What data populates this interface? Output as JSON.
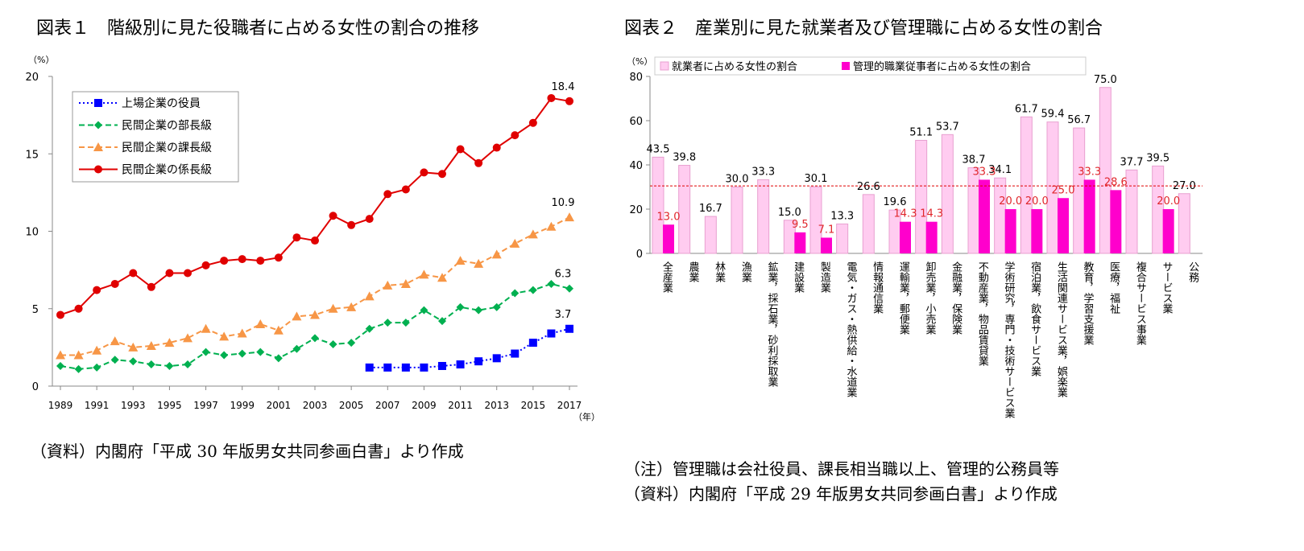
{
  "chart_data": [
    {
      "type": "line",
      "title": "図表１　階級別に見た役職者に占める女性の割合の推移",
      "y_unit": "（%）",
      "x_unit": "（年）",
      "notes": [
        "（資料）内閣府「平成 30 年版男女共同参画白書」より作成"
      ],
      "x": [
        1989,
        1990,
        1991,
        1992,
        1993,
        1994,
        1995,
        1996,
        1997,
        1998,
        1999,
        2000,
        2001,
        2002,
        2003,
        2004,
        2005,
        2006,
        2007,
        2008,
        2009,
        2010,
        2011,
        2012,
        2013,
        2014,
        2015,
        2016,
        2017
      ],
      "xlim": [
        1989,
        2017
      ],
      "xticks": [
        1989,
        1991,
        1993,
        1995,
        1997,
        1999,
        2001,
        2003,
        2005,
        2007,
        2009,
        2011,
        2013,
        2015,
        2017
      ],
      "ylim": [
        0,
        20
      ],
      "yticks": [
        0,
        5,
        10,
        15,
        20
      ],
      "series": [
        {
          "name": "上場企業の役員",
          "color": "#0000ff",
          "marker": "square",
          "dash": "dotted",
          "values": [
            null,
            null,
            null,
            null,
            null,
            null,
            null,
            null,
            null,
            null,
            null,
            null,
            null,
            null,
            null,
            null,
            null,
            1.2,
            1.2,
            1.2,
            1.2,
            1.3,
            1.4,
            1.6,
            1.8,
            2.1,
            2.8,
            3.4,
            3.7
          ]
        },
        {
          "name": "民間企業の部長級",
          "color": "#00b050",
          "marker": "diamond",
          "dash": "dashed",
          "values": [
            1.3,
            1.1,
            1.2,
            1.7,
            1.6,
            1.4,
            1.3,
            1.4,
            2.2,
            2.0,
            2.1,
            2.2,
            1.8,
            2.4,
            3.1,
            2.7,
            2.8,
            3.7,
            4.1,
            4.1,
            4.9,
            4.2,
            5.1,
            4.9,
            5.1,
            6.0,
            6.2,
            6.6,
            6.3
          ]
        },
        {
          "name": "民間企業の課長級",
          "color": "#f79646",
          "marker": "triangle",
          "dash": "dashed",
          "values": [
            2.0,
            2.0,
            2.3,
            2.9,
            2.5,
            2.6,
            2.8,
            3.1,
            3.7,
            3.2,
            3.4,
            4.0,
            3.6,
            4.5,
            4.6,
            5.0,
            5.1,
            5.8,
            6.5,
            6.6,
            7.2,
            7.0,
            8.1,
            7.9,
            8.5,
            9.2,
            9.8,
            10.3,
            10.9
          ]
        },
        {
          "name": "民間企業の係長級",
          "color": "#e00000",
          "marker": "circle",
          "dash": "solid",
          "values": [
            4.6,
            5.0,
            6.2,
            6.6,
            7.3,
            6.4,
            7.3,
            7.3,
            7.8,
            8.1,
            8.2,
            8.1,
            8.3,
            9.6,
            9.4,
            11.0,
            10.4,
            10.8,
            12.4,
            12.7,
            13.8,
            13.7,
            15.3,
            14.4,
            15.4,
            16.2,
            17.0,
            18.6,
            18.4
          ]
        }
      ]
    },
    {
      "type": "bar",
      "title": "図表２　産業別に見た就業者及び管理職に占める女性の割合",
      "y_unit": "（%）",
      "notes": [
        "（注）管理職は会社役員、課長相当職以上、管理的公務員等",
        "（資料）内閣府「平成 29 年版男女共同参画白書」より作成"
      ],
      "categories": [
        "全産業",
        "農業",
        "林業",
        "漁業",
        "鉱業，採石業，砂利採取業",
        "建設業",
        "製造業",
        "電気・ガス・熱供給・水道業",
        "情報通信業",
        "運輸業，郵便業",
        "卸売業，小売業",
        "金融業，保険業",
        "不動産業，物品賃貸業",
        "学術研究，専門・技術サービス業",
        "宿泊業，飲食サービス業",
        "生活関連サービス業，娯楽業",
        "教育，学習支援業",
        "医療，福祉",
        "複合サービス事業",
        "サービス業",
        "公務"
      ],
      "ylim": [
        0,
        80
      ],
      "yticks": [
        0,
        20,
        40,
        60,
        80
      ],
      "reference_line": 30.5,
      "reference_color": "#e00000",
      "series": [
        {
          "name": "就業者に占める女性の割合",
          "color": "#ffccf0",
          "label_color": "#000000",
          "values": [
            43.5,
            39.8,
            16.7,
            30.0,
            33.3,
            15.0,
            30.1,
            13.3,
            26.6,
            19.6,
            51.1,
            53.7,
            38.7,
            34.1,
            61.7,
            59.4,
            56.7,
            75.0,
            37.7,
            39.5,
            27.0
          ],
          "value_labels": [
            "43.5",
            "39.8",
            "16.7",
            "30.0",
            "33.3",
            "15.0",
            "30.1",
            "13.3",
            "26.6",
            "19.6",
            "51.1",
            "53.7",
            "38.7",
            "34.1",
            "61.7",
            "59.4",
            "56.7",
            "75.0",
            "37.7",
            "39.5",
            "27.0"
          ]
        },
        {
          "name": "管理的職業従事者に占める女性の割合",
          "color": "#ff00cc",
          "label_color": "#e0262b",
          "values": [
            13.0,
            null,
            null,
            null,
            null,
            9.5,
            7.1,
            null,
            null,
            14.3,
            14.3,
            null,
            33.3,
            20.0,
            20.0,
            25.0,
            33.3,
            28.6,
            null,
            20.0,
            null
          ],
          "value_labels": [
            "13.0",
            null,
            null,
            null,
            null,
            "9.5",
            "7.1",
            null,
            null,
            "14.3",
            "14.3",
            null,
            "33.3",
            "20.0",
            "20.0",
            "25.0",
            "33.3",
            "28.6",
            null,
            "20.0",
            null
          ]
        }
      ]
    }
  ]
}
